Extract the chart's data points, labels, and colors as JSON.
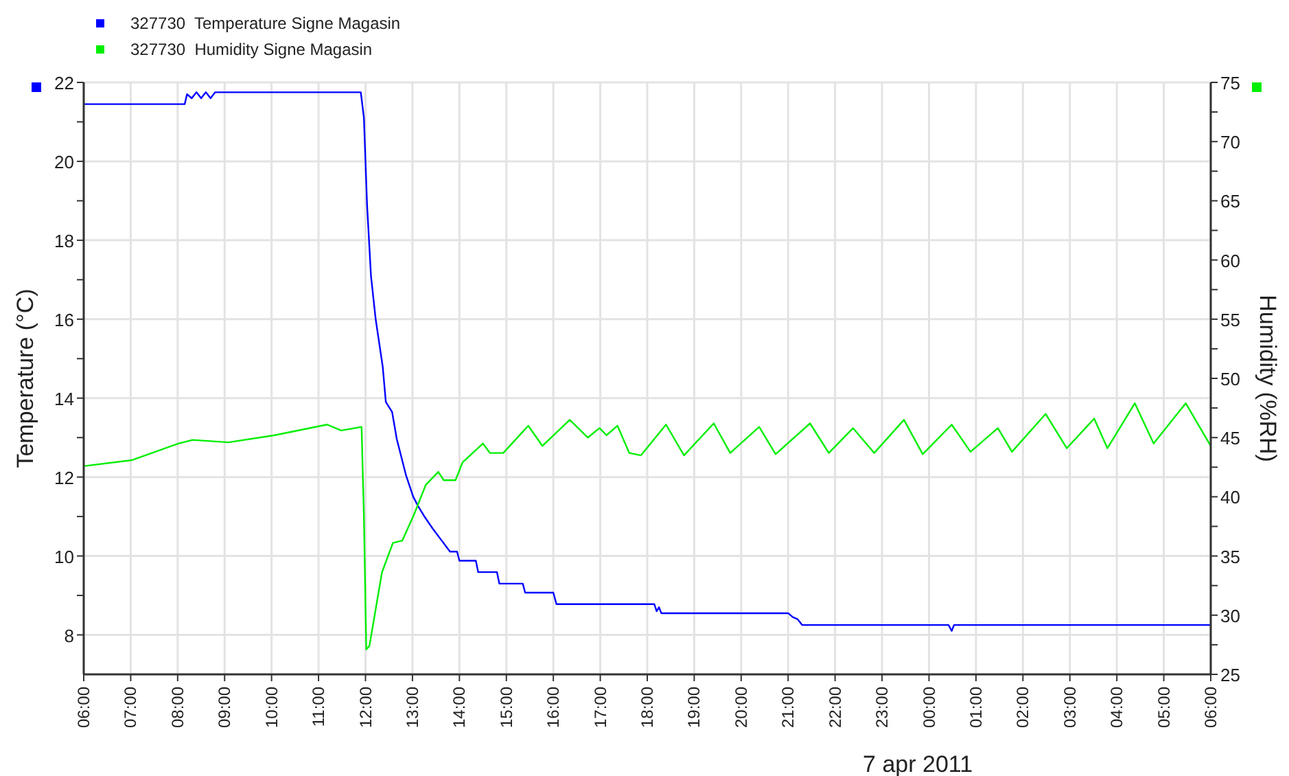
{
  "chart_data": {
    "type": "line",
    "xlabel": "7 apr 2011",
    "ylabel": "Temperature (°C)",
    "y2label": "Humidity (%RH)",
    "xlim": [
      "2011-04-06T06:00",
      "2011-04-07T06:00"
    ],
    "xticks": [
      {
        "value": "2011-04-06T06:00",
        "label": "06:00"
      },
      {
        "value": "2011-04-06T07:00",
        "label": "07:00"
      },
      {
        "value": "2011-04-06T08:00",
        "label": "08:00"
      },
      {
        "value": "2011-04-06T09:00",
        "label": "09:00"
      },
      {
        "value": "2011-04-06T10:00",
        "label": "10:00"
      },
      {
        "value": "2011-04-06T11:00",
        "label": "11:00"
      },
      {
        "value": "2011-04-06T12:00",
        "label": "12:00"
      },
      {
        "value": "2011-04-06T13:00",
        "label": "13:00"
      },
      {
        "value": "2011-04-06T14:00",
        "label": "14:00"
      },
      {
        "value": "2011-04-06T15:00",
        "label": "15:00"
      },
      {
        "value": "2011-04-06T16:00",
        "label": "16:00"
      },
      {
        "value": "2011-04-06T17:00",
        "label": "17:00"
      },
      {
        "value": "2011-04-06T18:00",
        "label": "18:00"
      },
      {
        "value": "2011-04-06T19:00",
        "label": "19:00"
      },
      {
        "value": "2011-04-06T20:00",
        "label": "20:00"
      },
      {
        "value": "2011-04-06T21:00",
        "label": "21:00"
      },
      {
        "value": "2011-04-06T22:00",
        "label": "22:00"
      },
      {
        "value": "2011-04-06T23:00",
        "label": "23:00"
      },
      {
        "value": "2011-04-07T00:00",
        "label": "00:00"
      },
      {
        "value": "2011-04-07T01:00",
        "label": "01:00"
      },
      {
        "value": "2011-04-07T02:00",
        "label": "02:00"
      },
      {
        "value": "2011-04-07T03:00",
        "label": "03:00"
      },
      {
        "value": "2011-04-07T04:00",
        "label": "04:00"
      },
      {
        "value": "2011-04-07T05:00",
        "label": "05:00"
      },
      {
        "value": "2011-04-07T06:00",
        "label": "06:00"
      }
    ],
    "ylim": [
      7,
      22
    ],
    "yticks": [
      8,
      {
        "value": 9,
        "label": null
      },
      10,
      {
        "value": 11,
        "label": null
      },
      12,
      {
        "value": 13,
        "label": null
      },
      14,
      {
        "value": 15,
        "label": null
      },
      16,
      {
        "value": 17,
        "label": null
      },
      18,
      {
        "value": 19,
        "label": null
      },
      20,
      {
        "value": 21,
        "label": null
      },
      22
    ],
    "y2lim": [
      25,
      75
    ],
    "y2ticks": [
      25,
      {
        "value": 27.5,
        "label": null
      },
      30,
      {
        "value": 32.5,
        "label": null
      },
      35,
      {
        "value": 37.5,
        "label": null
      },
      40,
      {
        "value": 42.5,
        "label": null
      },
      45,
      {
        "value": 47.5,
        "label": null
      },
      50,
      {
        "value": 52.5,
        "label": null
      },
      55,
      {
        "value": 57.5,
        "label": null
      },
      60,
      {
        "value": 62.5,
        "label": null
      },
      65,
      {
        "value": 67.5,
        "label": null
      },
      70,
      {
        "value": 72.5,
        "label": null
      },
      75
    ],
    "grid": true,
    "legend": "top left",
    "marker": "none",
    "line_style": "solid",
    "series": [
      {
        "name": "327730  Temperature Signe Magasin",
        "color": "#0000ff",
        "x": [
          "2011-04-06T06:00",
          "2011-04-06T08:09",
          "2011-04-06T08:12",
          "2011-04-06T08:18",
          "2011-04-06T08:24",
          "2011-04-06T08:30",
          "2011-04-06T08:36",
          "2011-04-06T08:42",
          "2011-04-06T08:48",
          "2011-04-06T11:54",
          "2011-04-06T11:58",
          "2011-04-06T12:02",
          "2011-04-06T12:07",
          "2011-04-06T12:13",
          "2011-04-06T12:22",
          "2011-04-06T12:26",
          "2011-04-06T12:34",
          "2011-04-06T12:40",
          "2011-04-06T12:52",
          "2011-04-06T13:01",
          "2011-04-06T13:07",
          "2011-04-06T13:16",
          "2011-04-06T13:26",
          "2011-04-06T13:37",
          "2011-04-06T13:48",
          "2011-04-06T13:57",
          "2011-04-06T14:00",
          "2011-04-06T14:21",
          "2011-04-06T14:24",
          "2011-04-06T14:48",
          "2011-04-06T14:51",
          "2011-04-06T15:21",
          "2011-04-06T15:24",
          "2011-04-06T16:00",
          "2011-04-06T16:04",
          "2011-04-06T18:09",
          "2011-04-06T18:12",
          "2011-04-06T18:15",
          "2011-04-06T18:18",
          "2011-04-06T21:00",
          "2011-04-06T21:06",
          "2011-04-06T21:12",
          "2011-04-06T21:18",
          "2011-04-07T00:25",
          "2011-04-07T00:29",
          "2011-04-07T00:32",
          "2011-04-07T06:00"
        ],
        "values": [
          21.45,
          21.45,
          21.7,
          21.6,
          21.75,
          21.6,
          21.75,
          21.6,
          21.75,
          21.75,
          21.1,
          18.9,
          17.1,
          16.0,
          14.8,
          13.9,
          13.65,
          12.96,
          12.03,
          11.5,
          11.27,
          10.98,
          10.69,
          10.4,
          10.11,
          10.11,
          9.88,
          9.88,
          9.59,
          9.59,
          9.3,
          9.3,
          9.07,
          9.07,
          8.78,
          8.78,
          8.6,
          8.7,
          8.55,
          8.55,
          8.45,
          8.4,
          8.25,
          8.25,
          8.1,
          8.25,
          8.25
        ]
      },
      {
        "name": "327730  Humidity Signe Magasin",
        "color": "#00ee00",
        "axis": "y2",
        "x": [
          "2011-04-06T06:01",
          "2011-04-06T07:02",
          "2011-04-06T08:01",
          "2011-04-06T08:19",
          "2011-04-06T09:05",
          "2011-04-06T10:04",
          "2011-04-06T11:11",
          "2011-04-06T11:29",
          "2011-04-06T11:55",
          "2011-04-06T11:58",
          "2011-04-06T12:01",
          "2011-04-06T12:05",
          "2011-04-06T12:21",
          "2011-04-06T12:35",
          "2011-04-06T12:47",
          "2011-04-06T13:02",
          "2011-04-06T13:17",
          "2011-04-06T13:33",
          "2011-04-06T13:40",
          "2011-04-06T13:55",
          "2011-04-06T14:04",
          "2011-04-06T14:30",
          "2011-04-06T14:39",
          "2011-04-06T14:56",
          "2011-04-06T15:28",
          "2011-04-06T15:46",
          "2011-04-06T16:21",
          "2011-04-06T16:44",
          "2011-04-06T16:59",
          "2011-04-06T17:08",
          "2011-04-06T17:22",
          "2011-04-06T17:37",
          "2011-04-06T17:52",
          "2011-04-06T18:24",
          "2011-04-06T18:47",
          "2011-04-06T19:25",
          "2011-04-06T19:46",
          "2011-04-06T20:23",
          "2011-04-06T20:44",
          "2011-04-06T21:28",
          "2011-04-06T21:52",
          "2011-04-06T22:23",
          "2011-04-06T22:50",
          "2011-04-06T23:28",
          "2011-04-06T23:52",
          "2011-04-07T00:29",
          "2011-04-07T00:53",
          "2011-04-07T01:28",
          "2011-04-07T01:46",
          "2011-04-07T02:29",
          "2011-04-07T02:56",
          "2011-04-07T03:31",
          "2011-04-07T03:48",
          "2011-04-07T04:23",
          "2011-04-07T04:47",
          "2011-04-07T05:28",
          "2011-04-07T06:00"
        ],
        "values": [
          42.6,
          43.1,
          44.5,
          44.8,
          44.6,
          45.2,
          46.1,
          45.6,
          45.9,
          38.3,
          27.1,
          27.4,
          33.6,
          36.1,
          36.3,
          38.5,
          41.0,
          42.1,
          41.4,
          41.4,
          42.9,
          44.5,
          43.7,
          43.7,
          46.0,
          44.3,
          46.5,
          45.0,
          45.8,
          45.2,
          46.0,
          43.7,
          43.5,
          46.1,
          43.5,
          46.2,
          43.7,
          45.9,
          43.6,
          46.2,
          43.7,
          45.8,
          43.7,
          46.5,
          43.6,
          46.1,
          43.8,
          45.8,
          43.8,
          47.0,
          44.1,
          46.6,
          44.1,
          47.9,
          44.5,
          47.9,
          44.3
        ]
      }
    ]
  }
}
